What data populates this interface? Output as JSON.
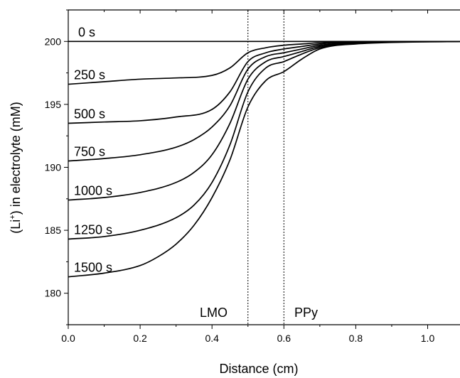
{
  "chart_data": {
    "type": "line",
    "xlabel": "Distance (cm)",
    "ylabel_main": "(Li",
    "ylabel_sup": "+",
    "ylabel_rest": ") in electrolyte (mM)",
    "xlim": [
      0.0,
      1.09
    ],
    "ylim": [
      177.5,
      202.5
    ],
    "xticks": [
      "0.0",
      "0.2",
      "0.4",
      "0.6",
      "0.8",
      "1.0"
    ],
    "xtick_values": [
      0.0,
      0.2,
      0.4,
      0.6,
      0.8,
      1.0
    ],
    "yticks": [
      "180",
      "185",
      "190",
      "195",
      "200"
    ],
    "ytick_values": [
      180,
      185,
      190,
      195,
      200
    ],
    "grid": false,
    "boundaries": [
      {
        "x": 0.5,
        "style": "dotted"
      },
      {
        "x": 0.6,
        "style": "dotted"
      }
    ],
    "region_labels": [
      "LMO",
      "PPy"
    ],
    "series": [
      {
        "name": "0 s",
        "x": [
          0.0,
          0.5,
          0.6,
          0.8,
          1.09
        ],
        "y": [
          200.0,
          200.0,
          200.0,
          200.0,
          200.0
        ]
      },
      {
        "name": "250 s",
        "x": [
          0.0,
          0.1,
          0.2,
          0.3,
          0.4,
          0.45,
          0.5,
          0.55,
          0.6,
          0.65,
          0.7,
          0.8,
          1.09
        ],
        "y": [
          196.6,
          196.8,
          197.0,
          197.1,
          197.3,
          197.9,
          199.1,
          199.5,
          199.7,
          199.8,
          199.9,
          200.0,
          200.0
        ]
      },
      {
        "name": "500 s",
        "x": [
          0.0,
          0.1,
          0.2,
          0.3,
          0.4,
          0.45,
          0.5,
          0.55,
          0.6,
          0.65,
          0.7,
          0.8,
          1.09
        ],
        "y": [
          193.5,
          193.6,
          193.7,
          194.0,
          194.6,
          196.0,
          198.4,
          199.1,
          199.4,
          199.6,
          199.8,
          199.95,
          200.0
        ]
      },
      {
        "name": "750 s",
        "x": [
          0.0,
          0.1,
          0.2,
          0.3,
          0.35,
          0.4,
          0.45,
          0.5,
          0.55,
          0.6,
          0.65,
          0.7,
          0.8,
          1.09
        ],
        "y": [
          190.5,
          190.7,
          191.0,
          191.6,
          192.2,
          193.2,
          194.9,
          197.8,
          198.8,
          199.1,
          199.4,
          199.7,
          199.9,
          200.0
        ]
      },
      {
        "name": "1000 s",
        "x": [
          0.0,
          0.1,
          0.2,
          0.3,
          0.35,
          0.4,
          0.45,
          0.5,
          0.55,
          0.6,
          0.65,
          0.7,
          0.8,
          1.09
        ],
        "y": [
          187.4,
          187.6,
          188.0,
          188.8,
          189.6,
          191.0,
          193.5,
          197.0,
          198.4,
          198.8,
          199.2,
          199.6,
          199.9,
          200.0
        ]
      },
      {
        "name": "1250 s",
        "x": [
          0.0,
          0.1,
          0.2,
          0.3,
          0.35,
          0.4,
          0.45,
          0.5,
          0.55,
          0.6,
          0.65,
          0.7,
          0.8,
          1.09
        ],
        "y": [
          184.3,
          184.5,
          185.0,
          186.0,
          187.0,
          188.8,
          191.8,
          196.0,
          197.9,
          198.4,
          199.0,
          199.5,
          199.85,
          200.0
        ]
      },
      {
        "name": "1500 s",
        "x": [
          0.0,
          0.1,
          0.2,
          0.25,
          0.3,
          0.35,
          0.4,
          0.45,
          0.5,
          0.55,
          0.6,
          0.65,
          0.7,
          0.8,
          1.09
        ],
        "y": [
          181.3,
          181.6,
          182.2,
          182.9,
          183.9,
          185.4,
          187.6,
          190.6,
          194.8,
          196.9,
          197.6,
          198.6,
          199.4,
          199.8,
          200.0
        ]
      }
    ]
  }
}
